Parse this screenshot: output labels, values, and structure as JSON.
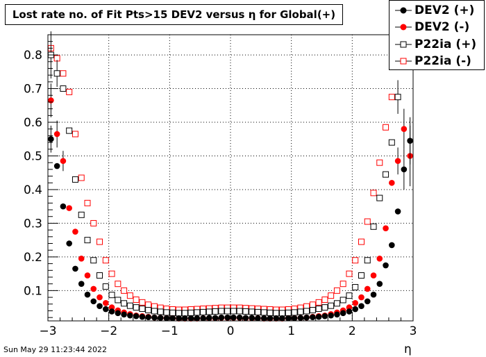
{
  "title": "Lost rate no. of Fit Pts>15 DEV2 versus η for Global(+)",
  "footer": {
    "date": "Sun May 29 11:23:44 2022"
  },
  "chart_data": {
    "type": "scatter",
    "title": "Lost rate no. of Fit Pts>15 DEV2 versus η for Global(+)",
    "xlabel": "η",
    "ylabel": "",
    "xlim": [
      -3,
      3
    ],
    "ylim": [
      0.01,
      0.86
    ],
    "grid": true,
    "legend_position": "top-right",
    "x_ticks": [
      -3,
      -2,
      -1,
      0,
      1,
      2,
      3
    ],
    "x_tick_labels": [
      "−3",
      "−2",
      "−1",
      "0",
      "1",
      "2",
      "3"
    ],
    "y_ticks": [
      0.1,
      0.2,
      0.3,
      0.4,
      0.5,
      0.6,
      0.7,
      0.8
    ],
    "y_tick_labels": [
      "0.1",
      "0.2",
      "0.3",
      "0.4",
      "0.5",
      "0.6",
      "0.7",
      "0.8"
    ],
    "x": [
      -2.95,
      -2.85,
      -2.75,
      -2.65,
      -2.55,
      -2.45,
      -2.35,
      -2.25,
      -2.15,
      -2.05,
      -1.95,
      -1.85,
      -1.75,
      -1.65,
      -1.55,
      -1.45,
      -1.35,
      -1.25,
      -1.15,
      -1.05,
      -0.95,
      -0.85,
      -0.75,
      -0.65,
      -0.55,
      -0.45,
      -0.35,
      -0.25,
      -0.15,
      -0.05,
      0.05,
      0.15,
      0.25,
      0.35,
      0.45,
      0.55,
      0.65,
      0.75,
      0.85,
      0.95,
      1.05,
      1.15,
      1.25,
      1.35,
      1.45,
      1.55,
      1.65,
      1.75,
      1.85,
      1.95,
      2.05,
      2.15,
      2.25,
      2.35,
      2.45,
      2.55,
      2.65,
      2.75,
      2.85,
      2.95
    ],
    "series": [
      {
        "name": "DEV2 (+)",
        "color": "#000000",
        "marker": "filled-circle",
        "values": [
          0.55,
          0.47,
          0.35,
          0.24,
          0.165,
          0.12,
          0.088,
          0.068,
          0.054,
          0.045,
          0.038,
          0.033,
          0.029,
          0.026,
          0.024,
          0.022,
          0.021,
          0.02,
          0.019,
          0.018,
          0.018,
          0.018,
          0.018,
          0.018,
          0.018,
          0.018,
          0.019,
          0.019,
          0.02,
          0.02,
          0.02,
          0.02,
          0.019,
          0.019,
          0.018,
          0.018,
          0.018,
          0.018,
          0.018,
          0.018,
          0.018,
          0.019,
          0.02,
          0.021,
          0.022,
          0.024,
          0.026,
          0.029,
          0.033,
          0.038,
          0.045,
          0.054,
          0.068,
          0.088,
          0.12,
          0.175,
          0.235,
          0.335,
          0.46,
          0.545
        ],
        "errors": [
          0.04,
          0,
          0,
          0,
          0,
          0,
          0,
          0,
          0,
          0,
          0,
          0,
          0,
          0,
          0,
          0,
          0,
          0,
          0,
          0,
          0,
          0,
          0,
          0,
          0,
          0,
          0,
          0,
          0,
          0,
          0,
          0,
          0,
          0,
          0,
          0,
          0,
          0,
          0,
          0,
          0,
          0,
          0,
          0,
          0,
          0,
          0,
          0,
          0,
          0,
          0,
          0,
          0,
          0,
          0,
          0,
          0,
          0,
          0.06,
          0.07
        ]
      },
      {
        "name": "DEV2 (-)",
        "color": "#ff0000",
        "marker": "filled-circle",
        "values": [
          0.665,
          0.565,
          0.485,
          0.345,
          0.275,
          0.195,
          0.145,
          0.105,
          0.08,
          0.063,
          0.05,
          0.041,
          0.035,
          0.03,
          0.026,
          0.024,
          0.022,
          0.02,
          0.019,
          0.018,
          0.018,
          0.017,
          0.017,
          0.017,
          0.017,
          0.018,
          0.018,
          0.018,
          0.019,
          0.019,
          0.019,
          0.019,
          0.018,
          0.018,
          0.018,
          0.017,
          0.017,
          0.017,
          0.017,
          0.018,
          0.018,
          0.019,
          0.02,
          0.022,
          0.024,
          0.026,
          0.03,
          0.035,
          0.041,
          0.05,
          0.063,
          0.08,
          0.105,
          0.145,
          0.195,
          0.285,
          0.42,
          0.485,
          0.58,
          0.5
        ],
        "errors": [
          0.05,
          0.04,
          0.03,
          0,
          0,
          0,
          0,
          0,
          0,
          0,
          0,
          0,
          0,
          0,
          0,
          0,
          0,
          0,
          0,
          0,
          0,
          0,
          0,
          0,
          0,
          0,
          0,
          0,
          0,
          0,
          0,
          0,
          0,
          0,
          0,
          0,
          0,
          0,
          0,
          0,
          0,
          0,
          0,
          0,
          0,
          0,
          0,
          0,
          0,
          0,
          0,
          0,
          0,
          0,
          0,
          0,
          0,
          0.04,
          0.06,
          0.09
        ]
      },
      {
        "name": "P22ia (+)",
        "color": "#000000",
        "marker": "open-square",
        "values": [
          0.8,
          0.745,
          0.7,
          0.575,
          0.43,
          0.325,
          0.25,
          0.19,
          0.145,
          0.112,
          0.087,
          0.072,
          0.062,
          0.055,
          0.05,
          0.046,
          0.042,
          0.039,
          0.037,
          0.035,
          0.034,
          0.033,
          0.033,
          0.034,
          0.035,
          0.036,
          0.037,
          0.038,
          0.039,
          0.039,
          0.039,
          0.039,
          0.038,
          0.037,
          0.036,
          0.035,
          0.034,
          0.033,
          0.033,
          0.034,
          0.035,
          0.037,
          0.039,
          0.042,
          0.046,
          0.05,
          0.055,
          0.062,
          0.072,
          0.085,
          0.11,
          0.145,
          0.19,
          0.29,
          0.375,
          0.445,
          0.54,
          0.675,
          0,
          0
        ],
        "errors": [
          0.07,
          0.04,
          0,
          0,
          0,
          0,
          0,
          0,
          0,
          0,
          0,
          0,
          0,
          0,
          0,
          0,
          0,
          0,
          0,
          0,
          0,
          0,
          0,
          0,
          0,
          0,
          0,
          0,
          0,
          0,
          0,
          0,
          0,
          0,
          0,
          0,
          0,
          0,
          0,
          0,
          0,
          0,
          0,
          0,
          0,
          0,
          0,
          0,
          0,
          0,
          0,
          0,
          0,
          0,
          0,
          0,
          0,
          0.05,
          0,
          0
        ]
      },
      {
        "name": "P22ia (-)",
        "color": "#ff0000",
        "marker": "open-square",
        "values": [
          0.82,
          0.79,
          0.745,
          0.69,
          0.565,
          0.435,
          0.36,
          0.3,
          0.245,
          0.19,
          0.15,
          0.12,
          0.1,
          0.085,
          0.073,
          0.065,
          0.058,
          0.053,
          0.049,
          0.046,
          0.044,
          0.043,
          0.043,
          0.044,
          0.045,
          0.046,
          0.047,
          0.048,
          0.049,
          0.049,
          0.049,
          0.049,
          0.048,
          0.047,
          0.046,
          0.045,
          0.044,
          0.043,
          0.043,
          0.044,
          0.046,
          0.049,
          0.053,
          0.058,
          0.065,
          0.073,
          0.085,
          0.1,
          0.12,
          0.15,
          0.19,
          0.245,
          0.305,
          0.39,
          0.48,
          0.585,
          0.675,
          0,
          0,
          0
        ],
        "errors": [
          0,
          0,
          0,
          0,
          0,
          0,
          0,
          0,
          0,
          0,
          0,
          0,
          0,
          0,
          0,
          0,
          0,
          0,
          0,
          0,
          0,
          0,
          0,
          0,
          0,
          0,
          0,
          0,
          0,
          0,
          0,
          0,
          0,
          0,
          0,
          0,
          0,
          0,
          0,
          0,
          0,
          0,
          0,
          0,
          0,
          0,
          0,
          0,
          0,
          0,
          0,
          0,
          0,
          0,
          0,
          0,
          0,
          0,
          0,
          0
        ]
      }
    ]
  }
}
